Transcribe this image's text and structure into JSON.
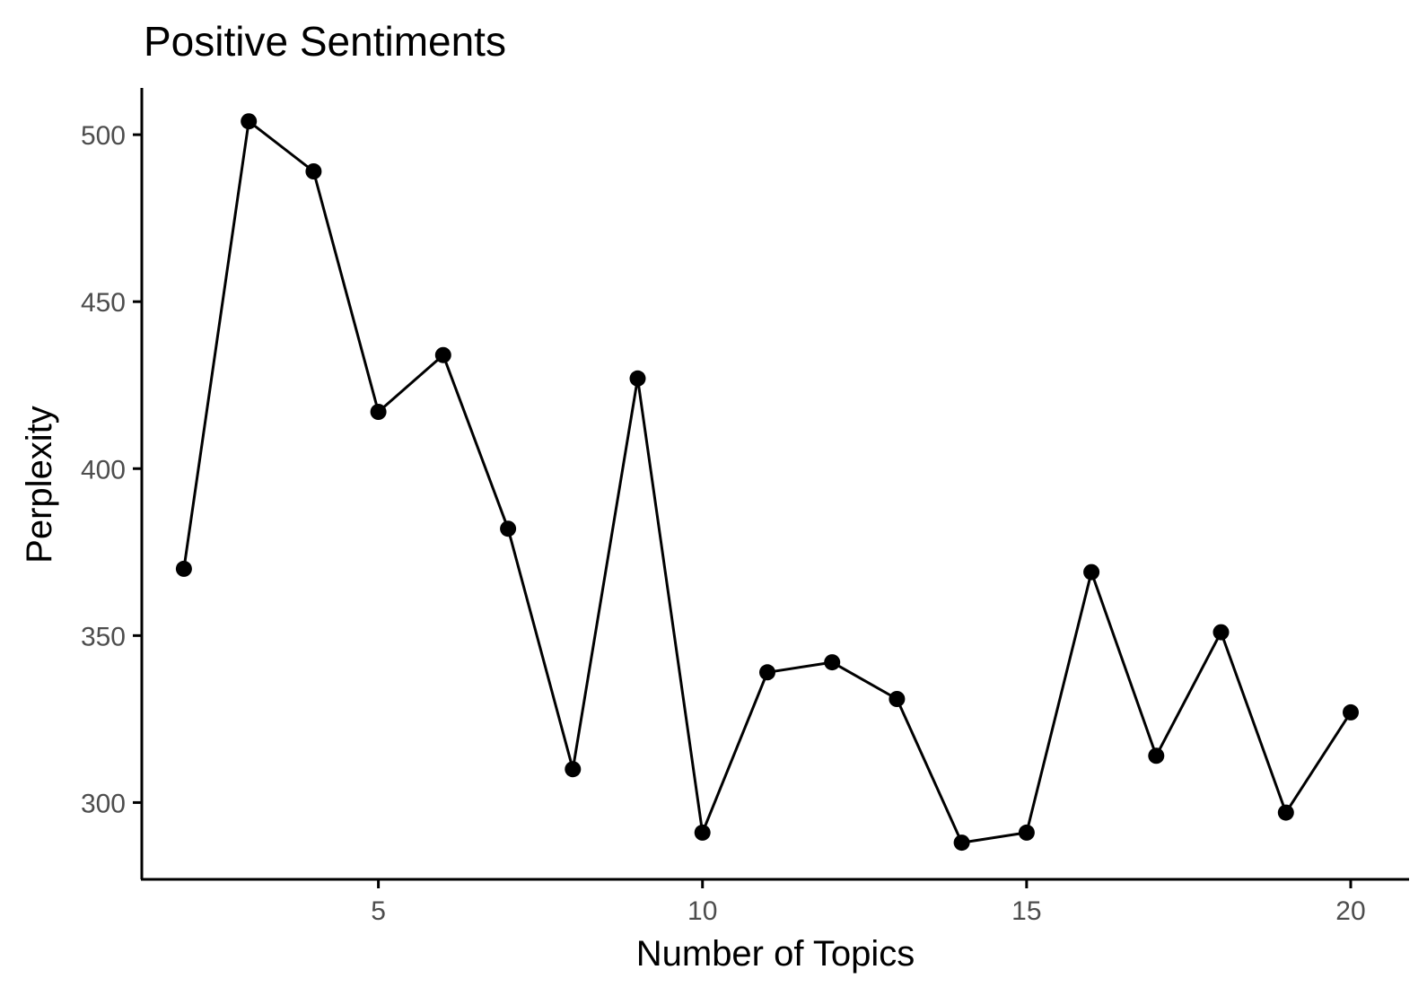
{
  "chart_data": {
    "type": "line",
    "title": "Positive Sentiments",
    "xlabel": "Number of Topics",
    "ylabel": "Perplexity",
    "xlim": [
      1.35,
      20.9
    ],
    "ylim": [
      277,
      514
    ],
    "x_ticks": [
      5,
      10,
      15,
      20
    ],
    "y_ticks": [
      300,
      350,
      400,
      450,
      500
    ],
    "grid": false,
    "legend": "none",
    "x": [
      2,
      3,
      4,
      5,
      6,
      7,
      8,
      9,
      10,
      11,
      12,
      13,
      14,
      15,
      16,
      17,
      18,
      19,
      20
    ],
    "values": [
      370,
      504,
      489,
      417,
      434,
      382,
      310,
      427,
      291,
      339,
      342,
      331,
      288,
      291,
      369,
      314,
      351,
      297,
      327
    ],
    "colors": {
      "line": "#000000",
      "point": "#000000",
      "tick_label": "#4d4d4d"
    }
  }
}
